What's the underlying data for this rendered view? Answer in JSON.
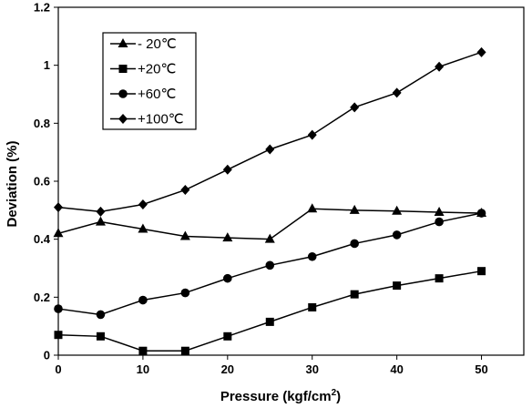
{
  "chart_data": {
    "type": "line",
    "title": "",
    "xlabel": "Pressure (kgf/cm",
    "xlabel_sup": "2",
    "xlabel_tail": ")",
    "ylabel": "Deviation (%)",
    "xlim": [
      0,
      55
    ],
    "ylim": [
      0,
      1.2
    ],
    "xticks": [
      0,
      10,
      20,
      30,
      40,
      50
    ],
    "yticks": [
      0,
      0.2,
      0.4,
      0.6,
      0.8,
      1,
      1.2
    ],
    "ytick_labels": [
      "0",
      "0.2",
      "0.4",
      "0.6",
      "0.8",
      "1",
      "1.2"
    ],
    "grid": false,
    "legend_position": "top-left",
    "series": [
      {
        "name": "- 20℃",
        "marker": "triangle",
        "x": [
          0,
          5,
          10,
          15,
          20,
          25,
          30,
          35,
          40,
          45,
          50
        ],
        "values": [
          0.42,
          0.46,
          0.435,
          0.41,
          0.405,
          0.4,
          0.505,
          0.5,
          0.497,
          0.493,
          0.49
        ]
      },
      {
        "name": "+20℃",
        "marker": "square",
        "x": [
          0,
          5,
          10,
          15,
          20,
          25,
          30,
          35,
          40,
          45,
          50
        ],
        "values": [
          0.07,
          0.065,
          0.015,
          0.015,
          0.065,
          0.115,
          0.165,
          0.21,
          0.24,
          0.265,
          0.29
        ]
      },
      {
        "name": "+60℃",
        "marker": "circle",
        "x": [
          0,
          5,
          10,
          15,
          20,
          25,
          30,
          35,
          40,
          45,
          50
        ],
        "values": [
          0.16,
          0.14,
          0.19,
          0.215,
          0.265,
          0.31,
          0.34,
          0.385,
          0.415,
          0.46,
          0.49
        ]
      },
      {
        "name": "+100℃",
        "marker": "diamond",
        "x": [
          0,
          5,
          10,
          15,
          20,
          25,
          30,
          35,
          40,
          45,
          50
        ],
        "values": [
          0.51,
          0.495,
          0.52,
          0.57,
          0.64,
          0.71,
          0.76,
          0.855,
          0.905,
          0.995,
          1.045
        ]
      }
    ]
  }
}
